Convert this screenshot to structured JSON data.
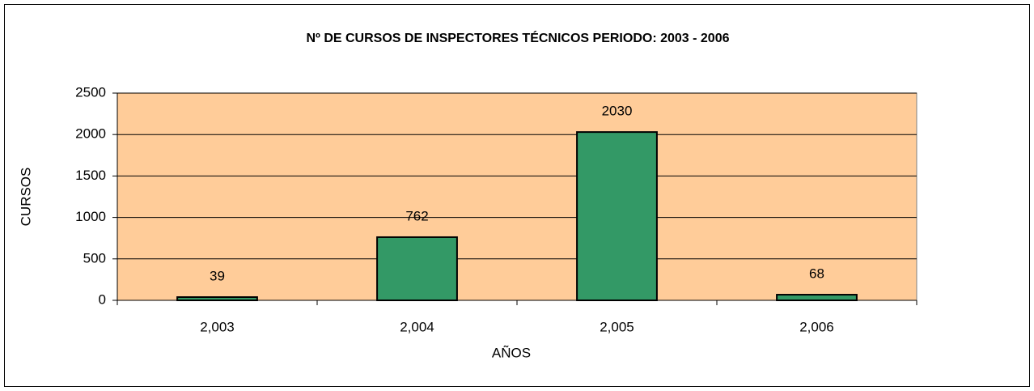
{
  "chart_data": {
    "type": "bar",
    "title": "Nº DE CURSOS DE INSPECTORES TÉCNICOS PERIODO: 2003 - 2006",
    "x_label": "AÑOS",
    "y_label": "CURSOS",
    "categories": [
      "2,003",
      "2,004",
      "2,005",
      "2,006"
    ],
    "values": [
      39,
      762,
      2030,
      68
    ],
    "color": "#339966",
    "plot_background": "#ffcc99",
    "ylim": [
      0,
      2500
    ],
    "yticks": [
      0,
      500,
      1000,
      1500,
      2000,
      2500
    ],
    "grid": true,
    "data_labels": true
  }
}
